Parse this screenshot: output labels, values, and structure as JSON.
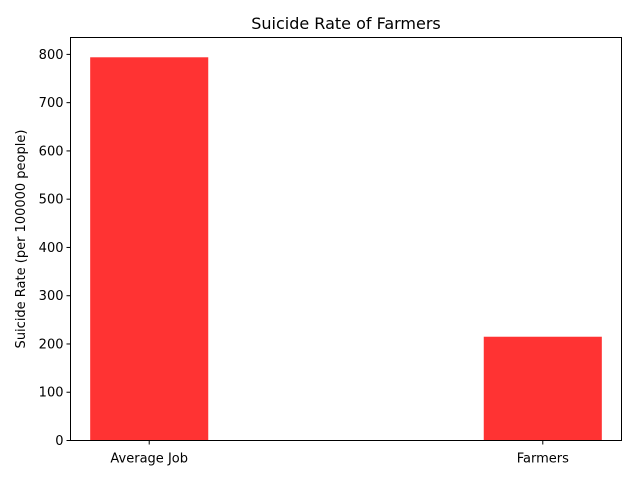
{
  "chart_data": {
    "type": "bar",
    "title": "Suicide Rate of Farmers",
    "xlabel": "",
    "ylabel": "Suicide Rate (per 100000 people)",
    "categories": [
      "Average Job",
      "Farmers"
    ],
    "values": [
      794,
      215
    ],
    "ylim": [
      0,
      835
    ],
    "yticks": [
      0,
      100,
      200,
      300,
      400,
      500,
      600,
      700,
      800
    ],
    "bar_color": "#ff3333",
    "grid": false,
    "legend": "none"
  }
}
